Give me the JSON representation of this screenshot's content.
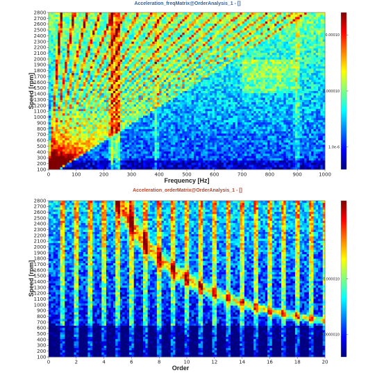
{
  "chart_data": [
    {
      "type": "heatmap",
      "title": "Acceleration_freqMatrix@OrderAnalysis_1 - []",
      "xlabel": "Frequency [Hz]",
      "ylabel": "Speed [rpm]",
      "xlim": [
        0,
        1000
      ],
      "ylim": [
        100,
        2800
      ],
      "x_ticks": [
        "0",
        "100",
        "200",
        "300",
        "400",
        "500",
        "600",
        "700",
        "800",
        "900",
        "1000"
      ],
      "y_ticks": [
        "100",
        "200",
        "300",
        "400",
        "500",
        "600",
        "700",
        "800",
        "900",
        "1000",
        "1100",
        "1200",
        "1300",
        "1400",
        "1500",
        "1600",
        "1700",
        "1800",
        "1900",
        "2000",
        "2100",
        "2200",
        "2300",
        "2400",
        "2500",
        "2600",
        "2700",
        "2800"
      ],
      "colorbar": {
        "scale": "log",
        "colormap": "jet",
        "ticks": [
          "0.00010",
          "0.000010",
          "1.0e-6"
        ],
        "tick_values": [
          0.0001,
          1e-05,
          1e-06
        ]
      },
      "features": {
        "order_lines_through_origin": [
          1,
          2,
          3,
          4,
          5,
          6,
          7,
          8,
          9,
          10,
          11,
          12,
          13,
          14,
          15,
          16,
          17,
          18,
          19,
          20
        ],
        "vertical_resonance_bands_hz": [
          230,
          250,
          390,
          900
        ]
      }
    },
    {
      "type": "heatmap",
      "title": "Acceleration_orderMatrix@OrderAnalysis_1 - []",
      "xlabel": "Order",
      "ylabel": "Speed [rpm]",
      "xlim": [
        0,
        20
      ],
      "ylim": [
        100,
        2800
      ],
      "x_ticks": [
        "0",
        "2",
        "4",
        "6",
        "8",
        "10",
        "12",
        "14",
        "16",
        "18",
        "20"
      ],
      "y_ticks": [
        "100",
        "200",
        "300",
        "400",
        "500",
        "600",
        "700",
        "800",
        "900",
        "1000",
        "1100",
        "1200",
        "1300",
        "1400",
        "1500",
        "1600",
        "1700",
        "1800",
        "1900",
        "2000",
        "2100",
        "2200",
        "2300",
        "2400",
        "2500",
        "2600",
        "2700",
        "2800"
      ],
      "colorbar": {
        "scale": "log",
        "colormap": "jet",
        "ticks": [
          "0.000010",
          "0.0000010"
        ],
        "tick_values": [
          1e-05,
          1e-06
        ]
      },
      "features": {
        "dominant_orders": [
          1,
          2,
          3,
          4,
          5,
          6,
          7,
          8,
          9,
          10,
          11,
          12,
          13,
          14,
          15,
          16,
          17,
          18,
          19,
          20
        ],
        "resonance_curve_hz": 240
      }
    }
  ]
}
